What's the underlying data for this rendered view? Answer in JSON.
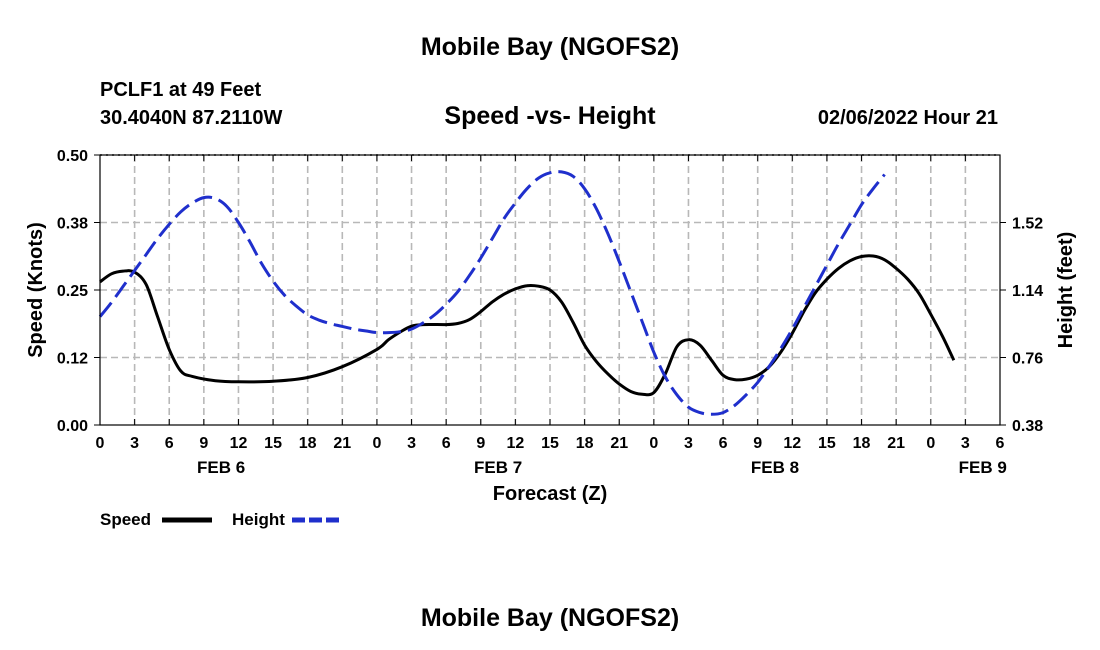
{
  "header": {
    "title": "Mobile Bay (NGOFS2)",
    "station": "PCLF1 at 49 Feet",
    "coords": "30.4040N  87.2110W",
    "subtitle": "Speed -vs- Height",
    "datetime": "02/06/2022 Hour 21"
  },
  "footer": {
    "title": "Mobile Bay (NGOFS2)"
  },
  "legend": {
    "speed_label": "Speed",
    "height_label": "Height"
  },
  "colors": {
    "speed": "#000000",
    "height": "#1f2fcc"
  },
  "chart_data": {
    "type": "line",
    "xlabel": "Forecast (Z)",
    "x_unit": "hours from 00Z Feb 6",
    "xlim": [
      0,
      78
    ],
    "x_tick_labels": [
      "0",
      "3",
      "6",
      "9",
      "12",
      "15",
      "18",
      "21",
      "0",
      "3",
      "6",
      "9",
      "12",
      "15",
      "18",
      "21",
      "0",
      "3",
      "6",
      "9",
      "12",
      "15",
      "18",
      "21",
      "0",
      "3",
      "6"
    ],
    "date_labels": [
      {
        "label": "FEB 6",
        "hour": 10.5
      },
      {
        "label": "FEB 7",
        "hour": 34.5
      },
      {
        "label": "FEB 8",
        "hour": 58.5
      },
      {
        "label": "FEB 9",
        "hour": 76.5
      }
    ],
    "ylabel": "Speed (Knots)",
    "ylim": [
      0,
      0.5
    ],
    "y_ticks": [
      "0.00",
      "0.12",
      "0.25",
      "0.38",
      "0.50"
    ],
    "y2label": "Height (feet)",
    "y2lim": [
      0.38,
      1.9
    ],
    "y2_ticks": [
      "0.38",
      "0.76",
      "1.14",
      "1.52"
    ],
    "grid": true,
    "legend_position": "bottom-left",
    "series": [
      {
        "name": "Speed",
        "axis": "left",
        "style": "solid",
        "points": [
          [
            0,
            0.265
          ],
          [
            1,
            0.28
          ],
          [
            2,
            0.285
          ],
          [
            3,
            0.283
          ],
          [
            4,
            0.26
          ],
          [
            5,
            0.2
          ],
          [
            6,
            0.14
          ],
          [
            7,
            0.1
          ],
          [
            8,
            0.09
          ],
          [
            10,
            0.082
          ],
          [
            12,
            0.08
          ],
          [
            15,
            0.081
          ],
          [
            18,
            0.088
          ],
          [
            21,
            0.108
          ],
          [
            24,
            0.14
          ],
          [
            25,
            0.158
          ],
          [
            26,
            0.172
          ],
          [
            27,
            0.183
          ],
          [
            28,
            0.186
          ],
          [
            30,
            0.186
          ],
          [
            31,
            0.188
          ],
          [
            32,
            0.195
          ],
          [
            33,
            0.21
          ],
          [
            34,
            0.228
          ],
          [
            35,
            0.242
          ],
          [
            36,
            0.252
          ],
          [
            37,
            0.258
          ],
          [
            38,
            0.257
          ],
          [
            39,
            0.25
          ],
          [
            40,
            0.228
          ],
          [
            41,
            0.19
          ],
          [
            42,
            0.148
          ],
          [
            43,
            0.118
          ],
          [
            44,
            0.095
          ],
          [
            45,
            0.076
          ],
          [
            46,
            0.062
          ],
          [
            47,
            0.057
          ],
          [
            48,
            0.06
          ],
          [
            49,
            0.095
          ],
          [
            50,
            0.145
          ],
          [
            51,
            0.158
          ],
          [
            52,
            0.148
          ],
          [
            53,
            0.12
          ],
          [
            54,
            0.092
          ],
          [
            55,
            0.084
          ],
          [
            56,
            0.085
          ],
          [
            57,
            0.092
          ],
          [
            58,
            0.108
          ],
          [
            59,
            0.135
          ],
          [
            60,
            0.17
          ],
          [
            61,
            0.21
          ],
          [
            62,
            0.245
          ],
          [
            63,
            0.27
          ],
          [
            64,
            0.29
          ],
          [
            65,
            0.304
          ],
          [
            66,
            0.312
          ],
          [
            67,
            0.313
          ],
          [
            68,
            0.306
          ],
          [
            69,
            0.29
          ],
          [
            70,
            0.27
          ],
          [
            71,
            0.243
          ],
          [
            72,
            0.205
          ],
          [
            73,
            0.165
          ],
          [
            74,
            0.12
          ]
        ]
      },
      {
        "name": "Height",
        "axis": "right",
        "style": "dashed",
        "points": [
          [
            0,
            0.99
          ],
          [
            1,
            1.07
          ],
          [
            2,
            1.16
          ],
          [
            3,
            1.25
          ],
          [
            4,
            1.34
          ],
          [
            5,
            1.43
          ],
          [
            6,
            1.51
          ],
          [
            7,
            1.58
          ],
          [
            8,
            1.63
          ],
          [
            9,
            1.66
          ],
          [
            10,
            1.655
          ],
          [
            11,
            1.61
          ],
          [
            12,
            1.52
          ],
          [
            13,
            1.41
          ],
          [
            14,
            1.29
          ],
          [
            15,
            1.19
          ],
          [
            16,
            1.11
          ],
          [
            17,
            1.05
          ],
          [
            18,
            1.0
          ],
          [
            19,
            0.97
          ],
          [
            20,
            0.95
          ],
          [
            21,
            0.935
          ],
          [
            22,
            0.92
          ],
          [
            23,
            0.91
          ],
          [
            24,
            0.9
          ],
          [
            25,
            0.9
          ],
          [
            26,
            0.905
          ],
          [
            27,
            0.92
          ],
          [
            28,
            0.955
          ],
          [
            29,
            1.0
          ],
          [
            30,
            1.06
          ],
          [
            31,
            1.13
          ],
          [
            32,
            1.22
          ],
          [
            33,
            1.32
          ],
          [
            34,
            1.43
          ],
          [
            35,
            1.54
          ],
          [
            36,
            1.63
          ],
          [
            37,
            1.71
          ],
          [
            38,
            1.77
          ],
          [
            39,
            1.8
          ],
          [
            40,
            1.805
          ],
          [
            41,
            1.78
          ],
          [
            42,
            1.71
          ],
          [
            43,
            1.6
          ],
          [
            44,
            1.46
          ],
          [
            45,
            1.3
          ],
          [
            46,
            1.13
          ],
          [
            47,
            0.96
          ],
          [
            48,
            0.79
          ],
          [
            49,
            0.65
          ],
          [
            50,
            0.55
          ],
          [
            51,
            0.48
          ],
          [
            52,
            0.45
          ],
          [
            53,
            0.44
          ],
          [
            54,
            0.45
          ],
          [
            55,
            0.49
          ],
          [
            56,
            0.55
          ],
          [
            57,
            0.62
          ],
          [
            58,
            0.71
          ],
          [
            59,
            0.81
          ],
          [
            60,
            0.92
          ],
          [
            61,
            1.04
          ],
          [
            62,
            1.16
          ],
          [
            63,
            1.28
          ],
          [
            64,
            1.4
          ],
          [
            65,
            1.51
          ],
          [
            66,
            1.62
          ],
          [
            67,
            1.71
          ],
          [
            68,
            1.79
          ]
        ]
      }
    ]
  }
}
